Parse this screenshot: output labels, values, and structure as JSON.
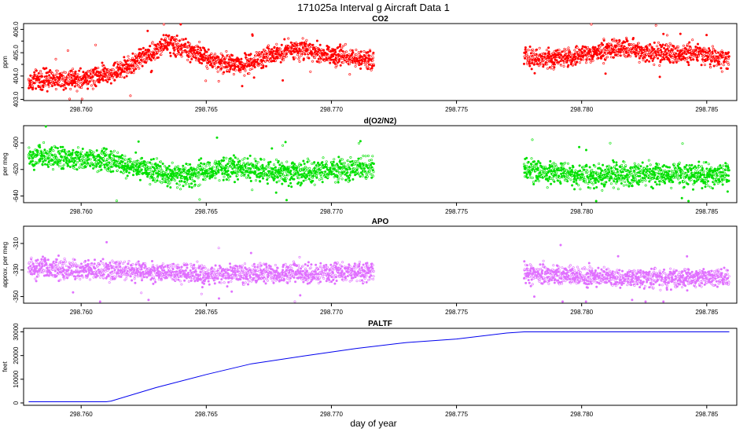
{
  "figure": {
    "title": "171025a   Interval g Aircraft Data 1",
    "xlabel": "day of year"
  },
  "chart_data": [
    {
      "type": "scatter",
      "title": "CO2",
      "ylabel": "ppm",
      "color": "#ff0000",
      "xlim": [
        298.7577,
        298.7862
      ],
      "ylim": [
        402.95,
        406.25
      ],
      "xticks": [
        "298.760",
        "298.765",
        "298.770",
        "298.775",
        "298.780",
        "298.785"
      ],
      "yticks": [
        "403.0",
        "404.0",
        "405.0",
        "406.0"
      ],
      "yticks_minor": [
        403.5,
        404.5,
        405.5
      ],
      "x_segments": [
        [
          298.7579,
          298.7717
        ],
        [
          298.7777,
          298.7859
        ]
      ],
      "trend": [
        [
          298.7579,
          403.8
        ],
        [
          298.76,
          403.9
        ],
        [
          298.7615,
          404.2
        ],
        [
          298.7625,
          404.8
        ],
        [
          298.7635,
          405.4
        ],
        [
          298.7643,
          405.1
        ],
        [
          298.7655,
          404.6
        ],
        [
          298.7665,
          404.5
        ],
        [
          298.7675,
          404.9
        ],
        [
          298.7685,
          405.2
        ],
        [
          298.77,
          404.9
        ],
        [
          298.7717,
          404.7
        ],
        [
          298.7777,
          404.8
        ],
        [
          298.779,
          404.7
        ],
        [
          298.78,
          404.9
        ],
        [
          298.7815,
          405.2
        ],
        [
          298.783,
          405.0
        ],
        [
          298.7845,
          405.0
        ],
        [
          298.7859,
          404.7
        ]
      ],
      "noise": 0.45
    },
    {
      "type": "scatter",
      "title": "d(O2/N2)",
      "ylabel": "per meg",
      "color": "#00e000",
      "xlim": [
        298.7577,
        298.7862
      ],
      "ylim": [
        -645,
        -587
      ],
      "xticks": [
        "298.760",
        "298.765",
        "298.770",
        "298.775",
        "298.780",
        "298.785"
      ],
      "yticks": [
        "-600",
        "-620",
        "-640"
      ],
      "yticks_minor": [],
      "x_segments": [
        [
          298.7579,
          298.7717
        ],
        [
          298.7777,
          298.7859
        ]
      ],
      "trend": [
        [
          298.7579,
          -610
        ],
        [
          298.761,
          -613
        ],
        [
          298.7625,
          -620
        ],
        [
          298.764,
          -625
        ],
        [
          298.766,
          -618
        ],
        [
          298.768,
          -623
        ],
        [
          298.77,
          -620
        ],
        [
          298.7717,
          -619
        ],
        [
          298.7777,
          -620
        ],
        [
          298.78,
          -625
        ],
        [
          298.783,
          -623
        ],
        [
          298.7859,
          -625
        ]
      ],
      "noise": 9
    },
    {
      "type": "scatter",
      "title": "APO",
      "ylabel": "approx. per meg",
      "color": "#e070ff",
      "xlim": [
        298.7577,
        298.7862
      ],
      "ylim": [
        -355,
        -297
      ],
      "xticks": [
        "298.760",
        "298.765",
        "298.770",
        "298.775",
        "298.780",
        "298.785"
      ],
      "yticks": [
        "-310",
        "-330",
        "-350"
      ],
      "yticks_minor": [],
      "x_segments": [
        [
          298.7579,
          298.7717
        ],
        [
          298.7777,
          298.7859
        ]
      ],
      "trend": [
        [
          298.7579,
          -329
        ],
        [
          298.761,
          -330
        ],
        [
          298.764,
          -333
        ],
        [
          298.767,
          -333
        ],
        [
          298.77,
          -332
        ],
        [
          298.7717,
          -331
        ],
        [
          298.7777,
          -332
        ],
        [
          298.781,
          -336
        ],
        [
          298.784,
          -336
        ],
        [
          298.7859,
          -336
        ]
      ],
      "noise": 8
    },
    {
      "type": "line",
      "title": "PALTF",
      "ylabel": "feet",
      "color": "#0000ee",
      "xlim": [
        298.7577,
        298.7862
      ],
      "ylim": [
        -1000,
        31500
      ],
      "xticks": [
        "298.760",
        "298.765",
        "298.770",
        "298.775",
        "298.780",
        "298.785"
      ],
      "yticks": [
        "0",
        "10000",
        "20000",
        "30000"
      ],
      "yticks_minor": [],
      "points": [
        [
          298.7579,
          500
        ],
        [
          298.761,
          500
        ],
        [
          298.7612,
          800
        ],
        [
          298.763,
          6500
        ],
        [
          298.765,
          12000
        ],
        [
          298.7668,
          16500
        ],
        [
          298.769,
          20000
        ],
        [
          298.771,
          23000
        ],
        [
          298.773,
          25500
        ],
        [
          298.775,
          27000
        ],
        [
          298.777,
          29500
        ],
        [
          298.7777,
          30000
        ],
        [
          298.78,
          30000
        ],
        [
          298.7859,
          30000
        ]
      ]
    }
  ]
}
